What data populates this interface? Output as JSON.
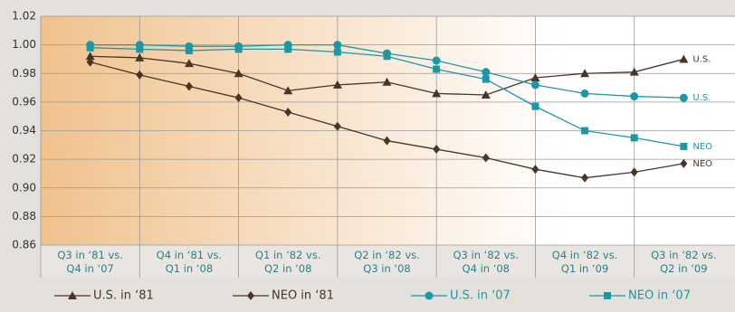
{
  "chart_data": {
    "type": "line",
    "categories": [
      "Q3 in ‘81 vs. Q4 in ‘07",
      null,
      "Q4 in ‘81 vs. Q1 in ‘08",
      null,
      "Q1 in ‘82 vs. Q2 in ‘08",
      null,
      "Q2 in ‘82 vs. Q3 in ‘08",
      null,
      "Q3 in ‘82 vs. Q4 in ‘08",
      null,
      "Q4 in ‘82 vs. Q1 in ‘09",
      null,
      "Q3 in ‘82 vs. Q2 in ‘09"
    ],
    "series": [
      {
        "name": "U.S. in ‘81",
        "label": "U.S.",
        "color": "#4a3428",
        "marker": "triangle",
        "values": [
          0.992,
          0.991,
          0.987,
          0.98,
          0.968,
          0.972,
          0.974,
          0.966,
          0.965,
          0.977,
          0.98,
          0.981,
          0.99
        ]
      },
      {
        "name": "NEO in ‘81",
        "label": "NEO",
        "color": "#4a3428",
        "marker": "diamond",
        "values": [
          0.988,
          0.979,
          0.971,
          0.963,
          0.953,
          0.943,
          0.933,
          0.927,
          0.921,
          0.913,
          0.907,
          0.911,
          0.917
        ]
      },
      {
        "name": "U.S. in ‘07",
        "label": "U.S.",
        "color": "#1a98a8",
        "marker": "circle",
        "values": [
          1.0,
          1.0,
          0.999,
          0.999,
          1.0,
          1.0,
          0.994,
          0.989,
          0.981,
          0.972,
          0.966,
          0.964,
          0.963
        ]
      },
      {
        "name": "NEO in ‘07",
        "label": "NEO",
        "color": "#1a98a8",
        "marker": "square",
        "values": [
          0.998,
          0.997,
          0.996,
          0.997,
          0.997,
          0.995,
          0.992,
          0.983,
          0.976,
          0.957,
          0.94,
          0.935,
          0.929
        ]
      }
    ],
    "ylim": [
      0.86,
      1.02
    ],
    "yticks": [
      0.86,
      0.88,
      {
        "value": 0.9,
        "label": "0.90"
      },
      0.92,
      0.94,
      0.96,
      0.98,
      {
        "value": 1,
        "label": "1.00"
      },
      1.02
    ],
    "grid": true
  }
}
